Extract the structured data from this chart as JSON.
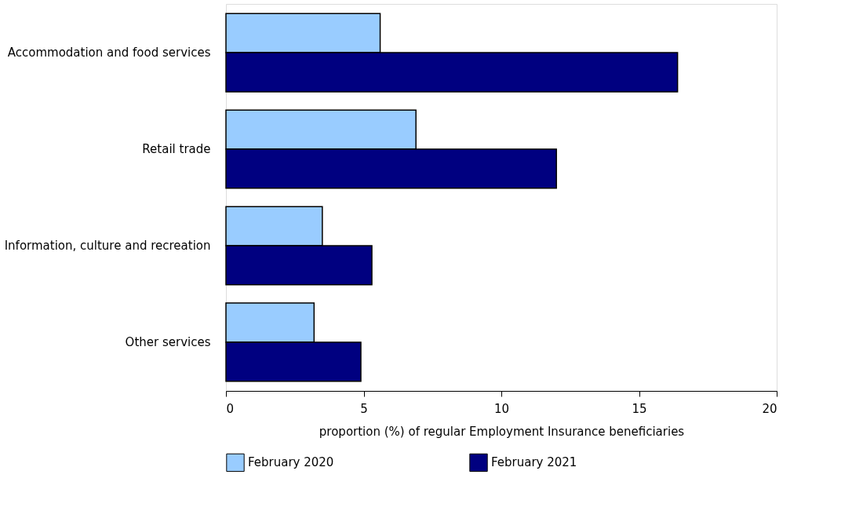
{
  "chart_data": {
    "type": "bar",
    "orientation": "horizontal",
    "categories": [
      "Accommodation and food services",
      "Retail trade",
      "Information, culture and recreation",
      "Other services"
    ],
    "series": [
      {
        "name": "February 2020",
        "color": "#99ccff",
        "values": [
          5.6,
          6.9,
          3.5,
          3.2
        ]
      },
      {
        "name": "February 2021",
        "color": "#000080",
        "values": [
          16.4,
          12.0,
          5.3,
          4.9
        ]
      }
    ],
    "xlabel": "proportion (%) of regular Employment Insurance beneficiaries",
    "xlim": [
      0,
      20
    ],
    "xticks": [
      0,
      5,
      10,
      15,
      20
    ],
    "grid": false,
    "legend": "bottom"
  }
}
